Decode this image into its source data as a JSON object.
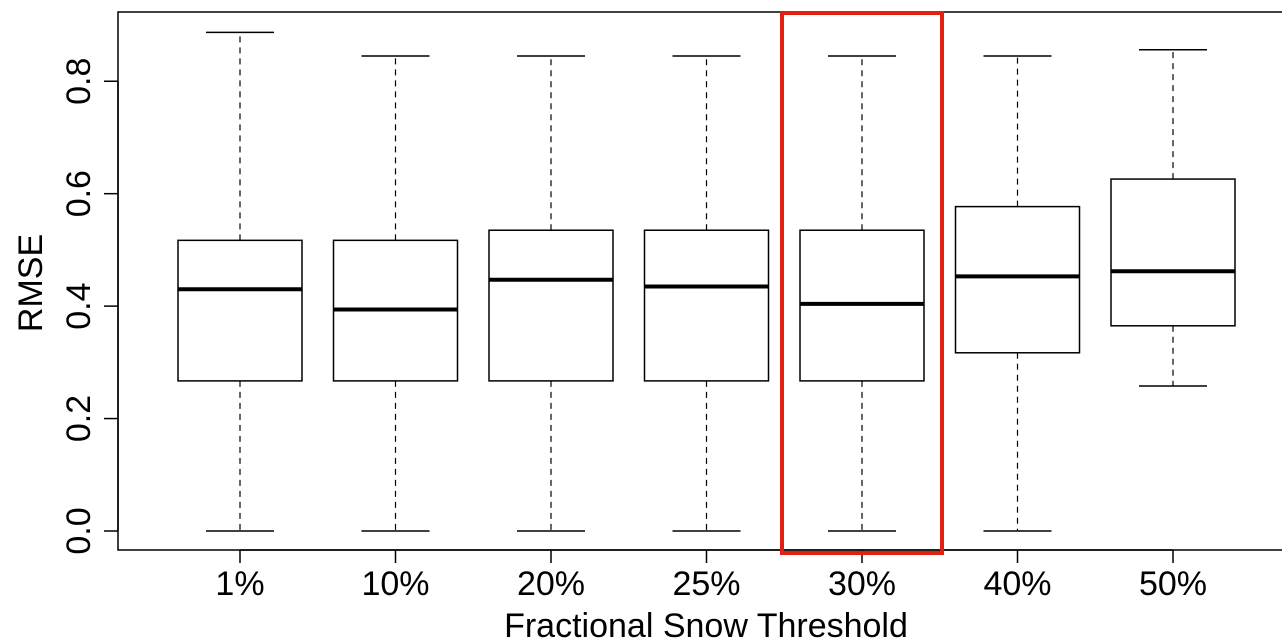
{
  "chart_data": {
    "type": "boxplot",
    "xlabel": "Fractional Snow Threshold",
    "ylabel": "RMSE",
    "ylim": [
      0.0,
      0.9
    ],
    "yticks": [
      0.0,
      0.2,
      0.4,
      0.6,
      0.8
    ],
    "ytick_labels": [
      "0.0",
      "0.2",
      "0.4",
      "0.6",
      "0.8"
    ],
    "categories": [
      "1%",
      "10%",
      "20%",
      "25%",
      "30%",
      "40%",
      "50%"
    ],
    "boxes": [
      {
        "category": "1%",
        "min": 0.0,
        "q1": 0.267,
        "median": 0.43,
        "q3": 0.517,
        "max": 0.887
      },
      {
        "category": "10%",
        "min": 0.0,
        "q1": 0.267,
        "median": 0.394,
        "q3": 0.517,
        "max": 0.845
      },
      {
        "category": "20%",
        "min": 0.0,
        "q1": 0.267,
        "median": 0.447,
        "q3": 0.535,
        "max": 0.845
      },
      {
        "category": "25%",
        "min": 0.0,
        "q1": 0.267,
        "median": 0.435,
        "q3": 0.535,
        "max": 0.845
      },
      {
        "category": "30%",
        "min": 0.0,
        "q1": 0.267,
        "median": 0.404,
        "q3": 0.535,
        "max": 0.845
      },
      {
        "category": "40%",
        "min": 0.0,
        "q1": 0.317,
        "median": 0.453,
        "q3": 0.577,
        "max": 0.845
      },
      {
        "category": "50%",
        "min": 0.258,
        "q1": 0.365,
        "median": 0.462,
        "q3": 0.626,
        "max": 0.856
      }
    ],
    "highlight": {
      "category": "30%",
      "color": "#e02010"
    },
    "grid": false,
    "legend": "none"
  }
}
